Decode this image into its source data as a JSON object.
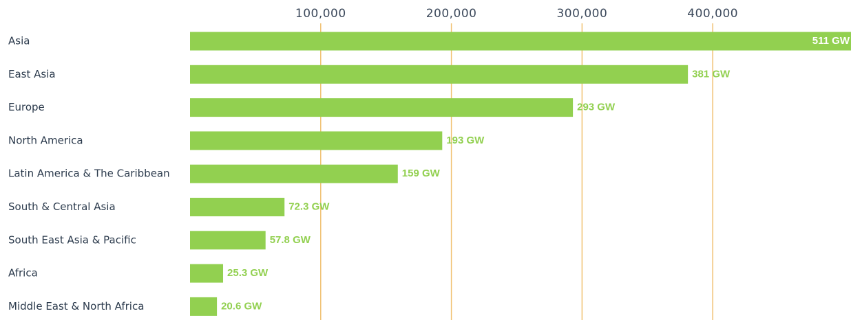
{
  "chart_data": {
    "type": "bar",
    "orientation": "horizontal",
    "categories": [
      "Asia",
      "East Asia",
      "Europe",
      "North America",
      "Latin America & The Caribbean",
      "South & Central Asia",
      "South East Asia & Pacific",
      "Africa",
      "Middle East & North Africa"
    ],
    "values": [
      511000,
      381000,
      293000,
      193000,
      159000,
      72300,
      57800,
      25300,
      20600
    ],
    "value_labels": [
      "511 GW",
      "381 GW",
      "293 GW",
      "193 GW",
      "159 GW",
      "72.3 GW",
      "57.8 GW",
      "25.3 GW",
      "20.6 GW"
    ],
    "color": "#92d050",
    "xlim": [
      0,
      500000
    ],
    "xticks": [
      {
        "value": 100000,
        "label": "100,000"
      },
      {
        "value": 200000,
        "label": "200,000"
      },
      {
        "value": 300000,
        "label": "300,000"
      },
      {
        "value": 400000,
        "label": "400,000"
      }
    ],
    "grid": true
  }
}
